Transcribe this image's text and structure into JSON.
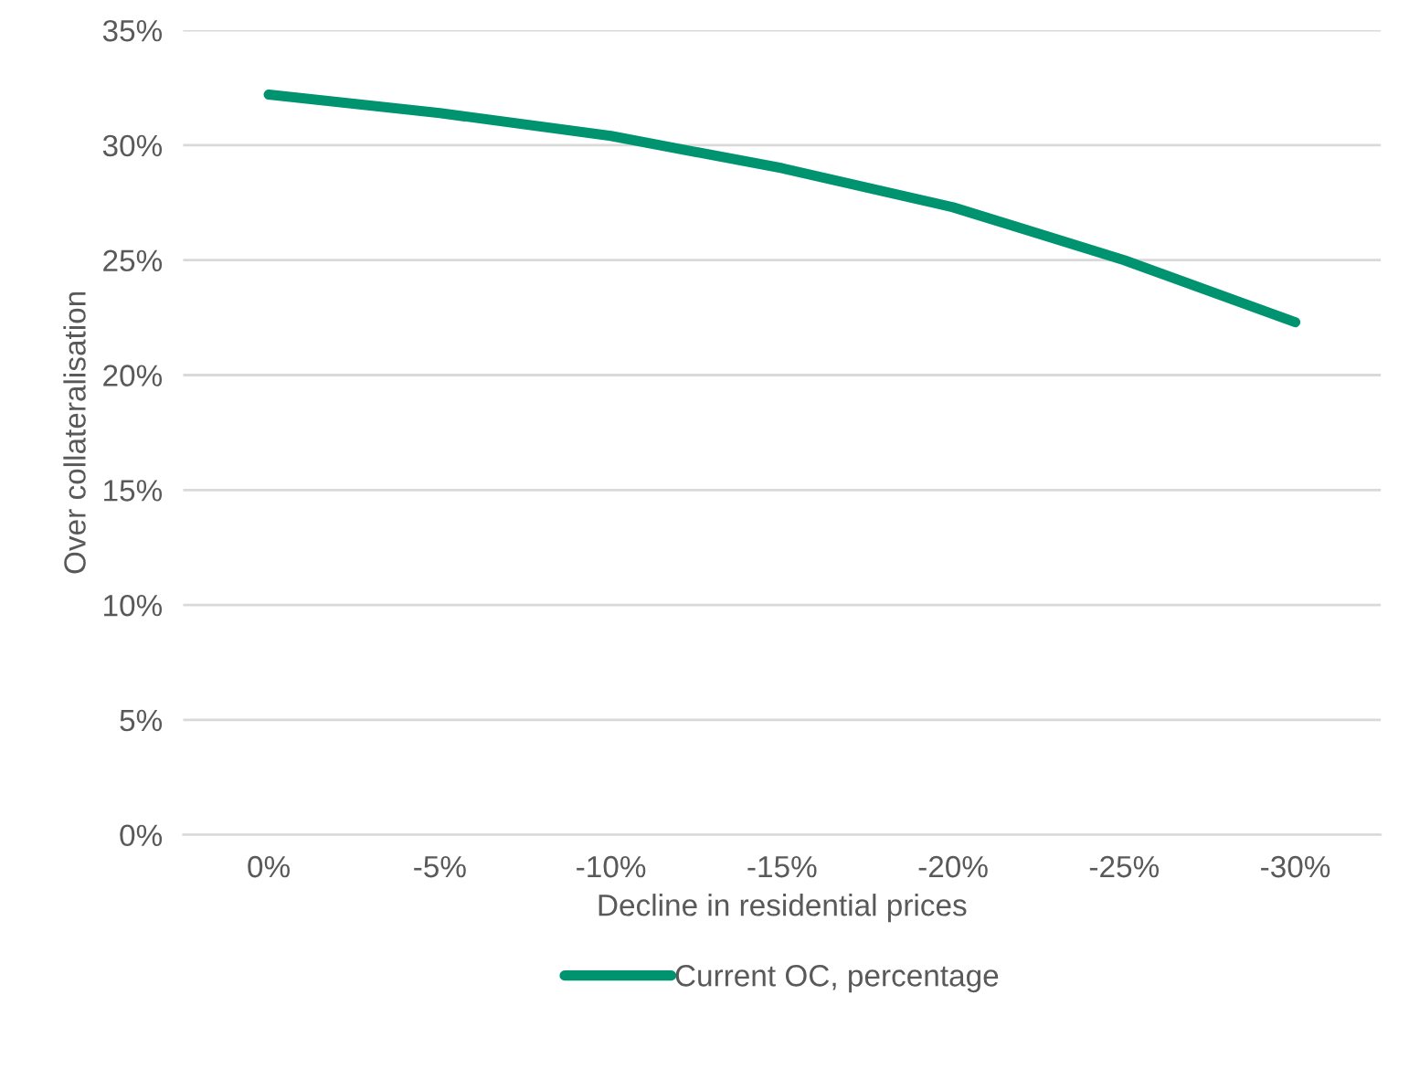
{
  "chart_data": {
    "type": "line",
    "xlabel": "Decline in residential prices",
    "ylabel": "Over collateralisation",
    "categories": [
      "0%",
      "-5%",
      "-10%",
      "-15%",
      "-20%",
      "-25%",
      "-30%"
    ],
    "series": [
      {
        "name": "Current OC, percentage",
        "color": "#009370",
        "values": [
          32.2,
          31.4,
          30.4,
          29.0,
          27.3,
          25.0,
          22.3
        ]
      }
    ],
    "ylim": [
      0,
      35
    ],
    "yticks": [
      {
        "value": 0,
        "label": "0%"
      },
      {
        "value": 5,
        "label": "5%"
      },
      {
        "value": 10,
        "label": "10%"
      },
      {
        "value": 15,
        "label": "15%"
      },
      {
        "value": 20,
        "label": "20%"
      },
      {
        "value": 25,
        "label": "25%"
      },
      {
        "value": 30,
        "label": "30%"
      },
      {
        "value": 35,
        "label": "35%"
      }
    ],
    "grid": "y",
    "legend": "bottom",
    "marker": "none",
    "line_style": "solid"
  }
}
